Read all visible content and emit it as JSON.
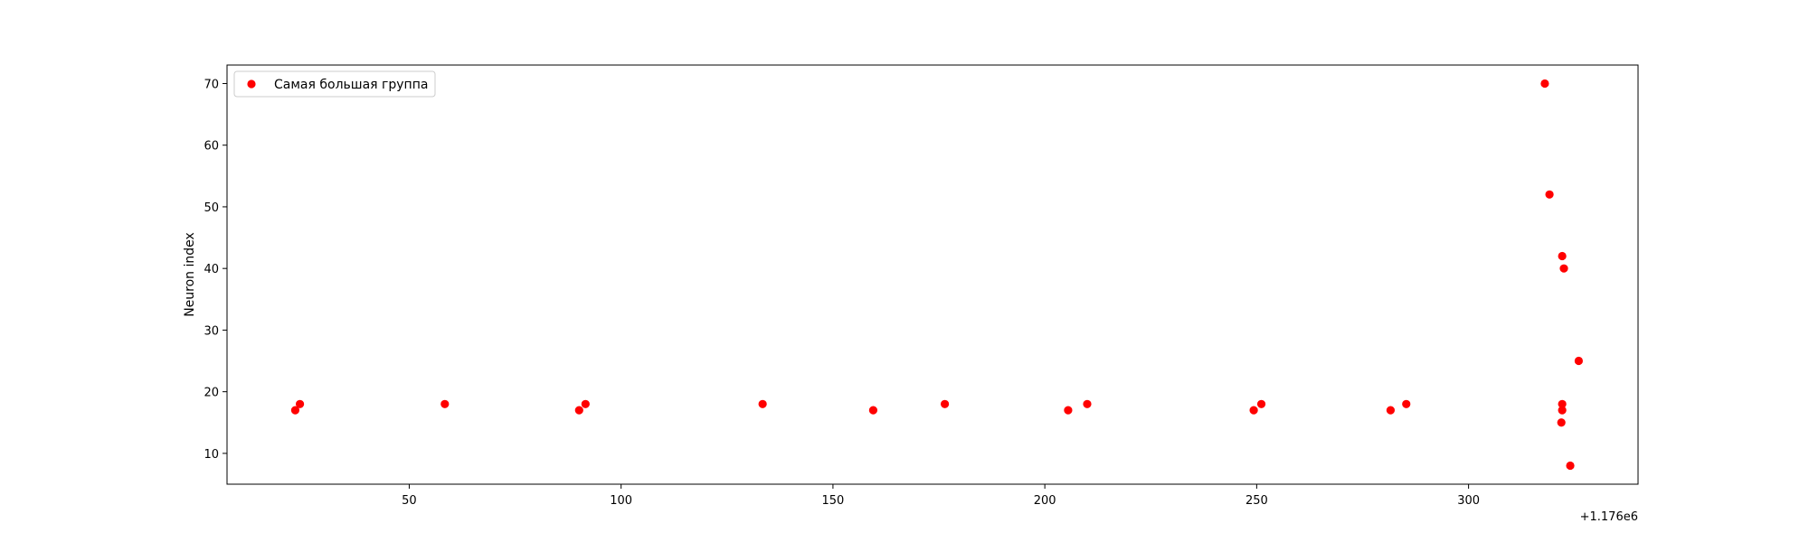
{
  "chart_data": {
    "type": "scatter",
    "title": "",
    "xlabel": "",
    "ylabel": "Neuron index",
    "x_offset_label": "+1.176e6",
    "xlim": [
      1176007,
      1176340
    ],
    "ylim": [
      5,
      73
    ],
    "x_ticks": [
      50,
      100,
      150,
      200,
      250,
      300
    ],
    "x_tick_labels": [
      "50",
      "100",
      "150",
      "200",
      "250",
      "300"
    ],
    "y_ticks": [
      10,
      20,
      30,
      40,
      50,
      60,
      70
    ],
    "y_tick_labels": [
      "10",
      "20",
      "30",
      "40",
      "50",
      "60",
      "70"
    ],
    "grid": false,
    "legend_position": "top-left",
    "series": [
      {
        "name": "Самая большая группа",
        "color": "#ff0000",
        "marker": "circle",
        "points": [
          {
            "x": 1176023.1,
            "y": 17
          },
          {
            "x": 1176024.2,
            "y": 18
          },
          {
            "x": 1176058.4,
            "y": 18
          },
          {
            "x": 1176090.1,
            "y": 17
          },
          {
            "x": 1176091.6,
            "y": 18
          },
          {
            "x": 1176133.4,
            "y": 18
          },
          {
            "x": 1176159.5,
            "y": 17
          },
          {
            "x": 1176176.4,
            "y": 18
          },
          {
            "x": 1176205.5,
            "y": 17
          },
          {
            "x": 1176210.0,
            "y": 18
          },
          {
            "x": 1176249.3,
            "y": 17
          },
          {
            "x": 1176251.1,
            "y": 18
          },
          {
            "x": 1176281.6,
            "y": 17
          },
          {
            "x": 1176285.3,
            "y": 18
          },
          {
            "x": 1176318.0,
            "y": 70
          },
          {
            "x": 1176319.1,
            "y": 52
          },
          {
            "x": 1176322.1,
            "y": 42
          },
          {
            "x": 1176322.5,
            "y": 40
          },
          {
            "x": 1176322.1,
            "y": 18
          },
          {
            "x": 1176322.1,
            "y": 17
          },
          {
            "x": 1176321.9,
            "y": 15
          },
          {
            "x": 1176324.0,
            "y": 8
          },
          {
            "x": 1176326.0,
            "y": 25
          }
        ]
      }
    ]
  }
}
